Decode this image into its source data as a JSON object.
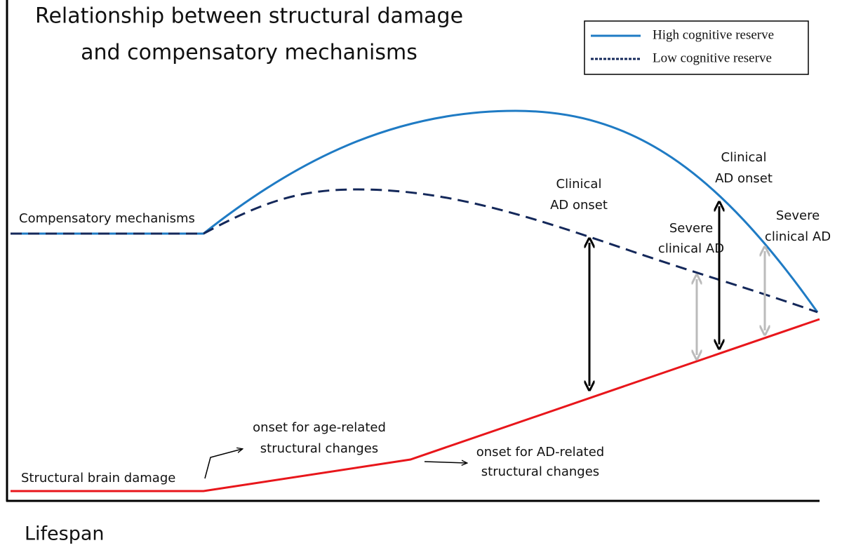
{
  "title": [
    "Relationship between structural damage",
    "and compensatory mechanisms"
  ],
  "legend": [
    {
      "label": "High cognitive reserve"
    },
    {
      "label": "Low cognitive reserve"
    }
  ],
  "curve_labels": {
    "compensatory": "Compensatory mechanisms",
    "damage": "Structural brain damage"
  },
  "onsets": [
    {
      "lines": [
        "onset for age-related",
        "structural changes"
      ]
    },
    {
      "lines": [
        "onset for AD-related",
        "structural changes"
      ]
    }
  ],
  "annotations": [
    {
      "lines": [
        "Clinical",
        "AD onset"
      ]
    },
    {
      "lines": [
        "Severe",
        "clinical AD"
      ]
    },
    {
      "lines": [
        "Clinical",
        "AD onset"
      ]
    },
    {
      "lines": [
        "Severe",
        "clinical AD"
      ]
    }
  ],
  "x_axis_label": "Lifespan"
}
